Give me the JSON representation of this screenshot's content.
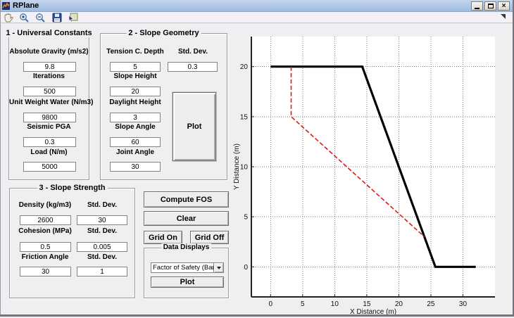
{
  "window": {
    "title": "RPlane",
    "controls": {
      "minimize": "minimize",
      "maximize": "maximize",
      "close": "×"
    }
  },
  "toolbar": {
    "icons": [
      "pan-hand",
      "zoom-in",
      "zoom-out",
      "save",
      "data-cursor"
    ]
  },
  "panels": {
    "universal_constants": {
      "title": "1 - Universal Constants",
      "fields": [
        {
          "label": "Absolute Gravity (m/s2)",
          "value": "9.8"
        },
        {
          "label": "Iterations",
          "value": "500"
        },
        {
          "label": "Unit Weight Water (N/m3)",
          "value": "9800"
        },
        {
          "label": "Seismic PGA",
          "value": "0.3"
        },
        {
          "label": "Load (N/m)",
          "value": "5000"
        }
      ]
    },
    "slope_geometry": {
      "title": "2 - Slope Geometry",
      "fields": [
        {
          "label": "Tension C. Depth",
          "value": "5"
        },
        {
          "label": "Slope Height",
          "value": "20"
        },
        {
          "label": "Daylight Height",
          "value": "3"
        },
        {
          "label": "Slope Angle",
          "value": "60"
        },
        {
          "label": "Joint Angle",
          "value": "30"
        }
      ],
      "std_dev": {
        "label": "Std. Dev.",
        "value": "0.3"
      },
      "plot_button_label": "Plot"
    },
    "slope_strength": {
      "title": "3 - Slope Strength",
      "rows": [
        {
          "label": "Density (kg/m3)",
          "value": "2600",
          "std_label": "Std. Dev.",
          "std_value": "30"
        },
        {
          "label": "Cohesion (MPa)",
          "value": "0.5",
          "std_label": "Std. Dev.",
          "std_value": "0.005"
        },
        {
          "label": "Friction Angle",
          "value": "30",
          "std_label": "Std. Dev.",
          "std_value": "1"
        }
      ]
    },
    "data_displays": {
      "title": "Data Displays",
      "dropdown_value": "Factor of Safety (Bar)",
      "plot_button_label": "Plot"
    }
  },
  "actions": {
    "compute_fos": "Compute FOS",
    "clear": "Clear",
    "grid_on": "Grid On",
    "grid_off": "Grid Off"
  },
  "chart_data": {
    "type": "line",
    "title": "",
    "xlabel": "X Distance (m)",
    "ylabel": "Y Distance (m)",
    "xlim": [
      -3,
      35
    ],
    "ylim": [
      -3,
      23
    ],
    "xticks": [
      0,
      5,
      10,
      15,
      20,
      25,
      30
    ],
    "yticks": [
      0,
      5,
      10,
      15,
      20
    ],
    "grid": true,
    "grid_color": "#7d7d7d",
    "series": [
      {
        "name": "slope-profile",
        "color": "#000000",
        "style": "solid",
        "width": 3.2,
        "points": [
          [
            0,
            20
          ],
          [
            14.3,
            20
          ],
          [
            25.7,
            0
          ],
          [
            32,
            0
          ]
        ]
      },
      {
        "name": "joint-and-tension-crack",
        "color": "#e11818",
        "style": "dashed",
        "width": 1.6,
        "points": [
          [
            3.2,
            20
          ],
          [
            3.2,
            15
          ],
          [
            24,
            3
          ]
        ]
      }
    ]
  }
}
